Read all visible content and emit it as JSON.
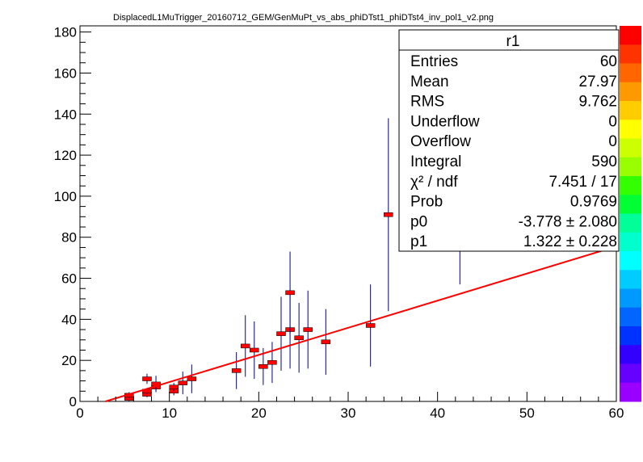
{
  "chart_data": {
    "type": "scatter",
    "title": "DisplacedL1MuTrigger_20160712_GEM/GenMuPt_vs_abs_phiDTst1_phiDTst4_inv_pol1_v2.png",
    "xlabel": "",
    "ylabel": "",
    "xlim": [
      0,
      60
    ],
    "ylim": [
      0,
      183
    ],
    "x_ticks": [
      "0",
      "10",
      "20",
      "30",
      "40",
      "50",
      "60"
    ],
    "y_ticks": [
      "0",
      "20",
      "40",
      "60",
      "80",
      "100",
      "120",
      "140",
      "160",
      "180"
    ],
    "points": [
      {
        "x": 5.5,
        "y": 1.5,
        "err": 1.5
      },
      {
        "x": 5.5,
        "y": 3,
        "err": 1.5
      },
      {
        "x": 7.5,
        "y": 3.5,
        "err": 1.5
      },
      {
        "x": 7.5,
        "y": 5,
        "err": 1.5
      },
      {
        "x": 7.5,
        "y": 11,
        "err": 2.5
      },
      {
        "x": 8.5,
        "y": 7,
        "err": 2
      },
      {
        "x": 8.5,
        "y": 8.5,
        "err": 4
      },
      {
        "x": 10.5,
        "y": 5,
        "err": 2
      },
      {
        "x": 10.5,
        "y": 7,
        "err": 2
      },
      {
        "x": 11.5,
        "y": 9,
        "err": 5.5
      },
      {
        "x": 12.5,
        "y": 11,
        "err": 7
      },
      {
        "x": 17.5,
        "y": 15,
        "err": 9
      },
      {
        "x": 18.5,
        "y": 27,
        "err": 15
      },
      {
        "x": 19.5,
        "y": 25,
        "err": 14
      },
      {
        "x": 20.5,
        "y": 17,
        "err": 9
      },
      {
        "x": 21.5,
        "y": 19,
        "err": 10
      },
      {
        "x": 22.5,
        "y": 33,
        "err": 18
      },
      {
        "x": 23.5,
        "y": 35,
        "err": 19
      },
      {
        "x": 23.5,
        "y": 53,
        "err": 20
      },
      {
        "x": 24.5,
        "y": 31,
        "err": 17
      },
      {
        "x": 25.5,
        "y": 35,
        "err": 19
      },
      {
        "x": 27.5,
        "y": 29,
        "err": 16
      },
      {
        "x": 32.5,
        "y": 37,
        "err": 20
      },
      {
        "x": 34.5,
        "y": 91,
        "err": 47
      },
      {
        "x": 42.5,
        "y": 115,
        "err": 58
      }
    ],
    "fit": {
      "p0": -3.778,
      "p1": 1.322,
      "x_from": 0,
      "x_to": 60
    },
    "stats_box": {
      "title": "r1",
      "rows": [
        {
          "label": "Entries",
          "value": "60"
        },
        {
          "label": "Mean",
          "value": "27.97"
        },
        {
          "label": "RMS",
          "value": "9.762"
        },
        {
          "label": "Underflow",
          "value": "0"
        },
        {
          "label": "Overflow",
          "value": "0"
        },
        {
          "label": "Integral",
          "value": "590"
        },
        {
          "label": "χ² / ndf",
          "value": "7.451 / 17"
        },
        {
          "label": "Prob",
          "value": "0.9769"
        },
        {
          "label": "p0",
          "value": "-3.778 ± 2.080"
        },
        {
          "label": "p1",
          "value": "1.322 ± 0.228"
        }
      ]
    },
    "palette": [
      "#ff0000",
      "#ff3300",
      "#ff6600",
      "#ff9900",
      "#ffcc00",
      "#ffff00",
      "#ccff00",
      "#99ff00",
      "#33ff00",
      "#00ff33",
      "#00ff99",
      "#00ffcc",
      "#00ffff",
      "#00ccff",
      "#0099ff",
      "#0066ff",
      "#0033ff",
      "#3300ff",
      "#6600ff",
      "#9900ff"
    ],
    "colors": {
      "marker": "#ff0000",
      "error_bar": "#00008b",
      "fit_line": "#ff0000"
    }
  }
}
